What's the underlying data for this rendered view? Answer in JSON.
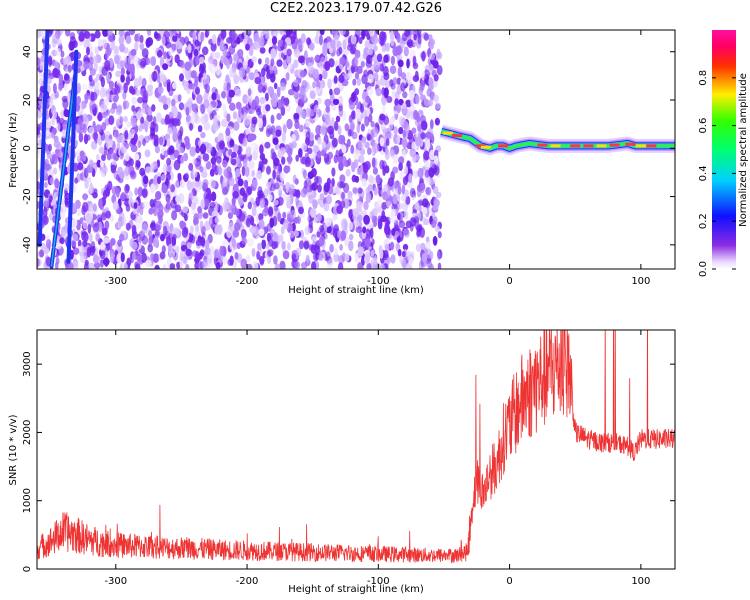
{
  "figure_title": "C2E2.2023.179.07.42.G26",
  "colors": {
    "snr_line": "#ee3333",
    "scatter_dot": "#7a2cf0",
    "band_edge": "#2233ee",
    "band_mid": "#22ccdd",
    "band_core": "#33ee44",
    "band_peak": "#ff3344"
  },
  "chart_data": [
    {
      "type": "heatmap",
      "xlabel": "Height of straight line (km)",
      "ylabel": "Frequency (Hz)",
      "xlim": [
        -360,
        126
      ],
      "ylim": [
        -50,
        49
      ],
      "x_ticks": [
        -300,
        -200,
        -100,
        0,
        100
      ],
      "y_ticks": [
        -40,
        -20,
        0,
        20,
        40
      ],
      "colorbar": {
        "label": "Normalized spectral amplitude",
        "range": [
          0,
          1
        ],
        "ticks": [
          "0.0",
          "0.2",
          "0.4",
          "0.6",
          "0.8"
        ],
        "colormap": "rainbow (white, violet, blue, cyan, green, yellow, red, magenta)"
      },
      "noise_region": {
        "x_range": [
          -360,
          -53
        ],
        "amplitude": "0.1-0.3"
      },
      "spectral_lines": [
        {
          "x": [
            -358,
            -352
          ],
          "y": [
            -40,
            49
          ]
        },
        {
          "x": [
            -349,
            -331
          ],
          "y": [
            -49,
            30
          ]
        },
        {
          "x": [
            -336,
            -330
          ],
          "y": [
            -47,
            40
          ]
        }
      ],
      "signal_band": {
        "x": [
          -52,
          -45,
          -38,
          -30,
          -22,
          -15,
          -10,
          -5,
          0,
          5,
          15,
          30,
          45,
          60,
          75,
          90,
          96,
          100,
          110,
          126
        ],
        "y": [
          7,
          6,
          5,
          4,
          1,
          0,
          1,
          1,
          0,
          1,
          2,
          1,
          1,
          1,
          1,
          2,
          1,
          1,
          1,
          1
        ],
        "peak_amplitude": 1.0
      }
    },
    {
      "type": "line",
      "xlabel": "Height of straight line (km)",
      "ylabel": "SNR (10 * v/v)",
      "xlim": [
        -360,
        126
      ],
      "ylim": [
        0,
        3500
      ],
      "x_ticks": [
        -300,
        -200,
        -100,
        0,
        100
      ],
      "y_ticks": [
        0,
        1000,
        2000,
        3000
      ],
      "series": [
        {
          "x": [
            -360,
            -350,
            -340,
            -330,
            -320,
            -300,
            -280,
            -260,
            -240,
            -220,
            -200,
            -180,
            -160,
            -140,
            -120,
            -100,
            -80,
            -60,
            -40,
            -32,
            -28,
            -25,
            -20,
            -15,
            -10,
            -5,
            0,
            5,
            10,
            20,
            30,
            40,
            45,
            50,
            60,
            70,
            80,
            90,
            95,
            100,
            110,
            126
          ],
          "y": [
            300,
            400,
            550,
            500,
            420,
            350,
            330,
            310,
            300,
            280,
            270,
            260,
            250,
            240,
            230,
            220,
            210,
            200,
            200,
            250,
            1000,
            1300,
            1100,
            1400,
            1500,
            1900,
            2100,
            2300,
            2500,
            2700,
            2900,
            3000,
            3000,
            2000,
            1900,
            1850,
            1850,
            1800,
            1700,
            1900,
            1900,
            1900
          ]
        }
      ]
    }
  ]
}
